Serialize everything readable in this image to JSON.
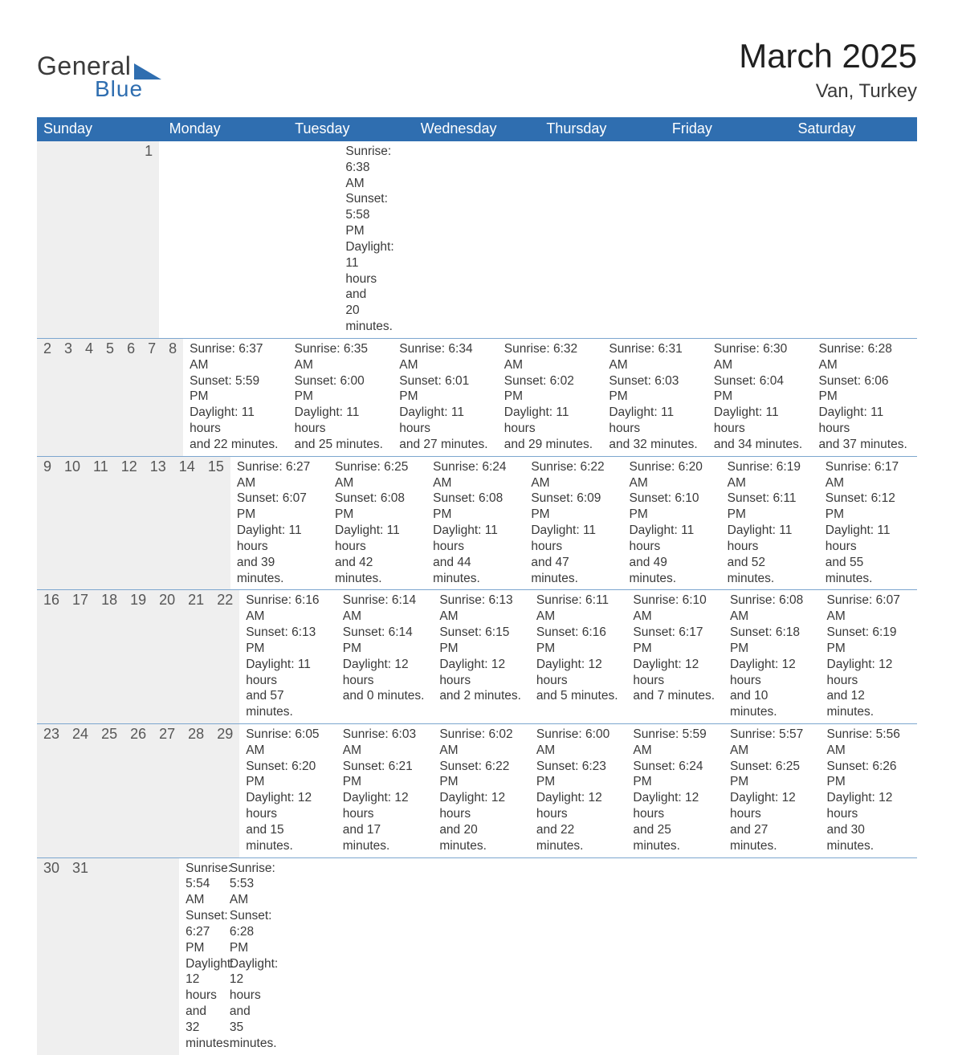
{
  "brand": {
    "name_part1": "General",
    "name_part2": "Blue",
    "text_color": "#3b3b3b",
    "accent_color": "#2f6eb0"
  },
  "title": "March 2025",
  "location": "Van, Turkey",
  "colors": {
    "header_bg": "#2f6eb0",
    "header_text": "#ffffff",
    "daynum_bg": "#efefef",
    "row_divider": "#7ca6cf",
    "body_text": "#3a3a3a",
    "page_bg": "#ffffff"
  },
  "typography": {
    "title_fontsize_pt": 32,
    "location_fontsize_pt": 18,
    "header_fontsize_pt": 14,
    "body_fontsize_pt": 12
  },
  "day_labels": [
    "Sunday",
    "Monday",
    "Tuesday",
    "Wednesday",
    "Thursday",
    "Friday",
    "Saturday"
  ],
  "weeks": [
    [
      null,
      null,
      null,
      null,
      null,
      null,
      {
        "n": "1",
        "sr": "Sunrise: 6:38 AM",
        "ss": "Sunset: 5:58 PM",
        "d1": "Daylight: 11 hours",
        "d2": "and 20 minutes."
      }
    ],
    [
      {
        "n": "2",
        "sr": "Sunrise: 6:37 AM",
        "ss": "Sunset: 5:59 PM",
        "d1": "Daylight: 11 hours",
        "d2": "and 22 minutes."
      },
      {
        "n": "3",
        "sr": "Sunrise: 6:35 AM",
        "ss": "Sunset: 6:00 PM",
        "d1": "Daylight: 11 hours",
        "d2": "and 25 minutes."
      },
      {
        "n": "4",
        "sr": "Sunrise: 6:34 AM",
        "ss": "Sunset: 6:01 PM",
        "d1": "Daylight: 11 hours",
        "d2": "and 27 minutes."
      },
      {
        "n": "5",
        "sr": "Sunrise: 6:32 AM",
        "ss": "Sunset: 6:02 PM",
        "d1": "Daylight: 11 hours",
        "d2": "and 29 minutes."
      },
      {
        "n": "6",
        "sr": "Sunrise: 6:31 AM",
        "ss": "Sunset: 6:03 PM",
        "d1": "Daylight: 11 hours",
        "d2": "and 32 minutes."
      },
      {
        "n": "7",
        "sr": "Sunrise: 6:30 AM",
        "ss": "Sunset: 6:04 PM",
        "d1": "Daylight: 11 hours",
        "d2": "and 34 minutes."
      },
      {
        "n": "8",
        "sr": "Sunrise: 6:28 AM",
        "ss": "Sunset: 6:06 PM",
        "d1": "Daylight: 11 hours",
        "d2": "and 37 minutes."
      }
    ],
    [
      {
        "n": "9",
        "sr": "Sunrise: 6:27 AM",
        "ss": "Sunset: 6:07 PM",
        "d1": "Daylight: 11 hours",
        "d2": "and 39 minutes."
      },
      {
        "n": "10",
        "sr": "Sunrise: 6:25 AM",
        "ss": "Sunset: 6:08 PM",
        "d1": "Daylight: 11 hours",
        "d2": "and 42 minutes."
      },
      {
        "n": "11",
        "sr": "Sunrise: 6:24 AM",
        "ss": "Sunset: 6:08 PM",
        "d1": "Daylight: 11 hours",
        "d2": "and 44 minutes."
      },
      {
        "n": "12",
        "sr": "Sunrise: 6:22 AM",
        "ss": "Sunset: 6:09 PM",
        "d1": "Daylight: 11 hours",
        "d2": "and 47 minutes."
      },
      {
        "n": "13",
        "sr": "Sunrise: 6:20 AM",
        "ss": "Sunset: 6:10 PM",
        "d1": "Daylight: 11 hours",
        "d2": "and 49 minutes."
      },
      {
        "n": "14",
        "sr": "Sunrise: 6:19 AM",
        "ss": "Sunset: 6:11 PM",
        "d1": "Daylight: 11 hours",
        "d2": "and 52 minutes."
      },
      {
        "n": "15",
        "sr": "Sunrise: 6:17 AM",
        "ss": "Sunset: 6:12 PM",
        "d1": "Daylight: 11 hours",
        "d2": "and 55 minutes."
      }
    ],
    [
      {
        "n": "16",
        "sr": "Sunrise: 6:16 AM",
        "ss": "Sunset: 6:13 PM",
        "d1": "Daylight: 11 hours",
        "d2": "and 57 minutes."
      },
      {
        "n": "17",
        "sr": "Sunrise: 6:14 AM",
        "ss": "Sunset: 6:14 PM",
        "d1": "Daylight: 12 hours",
        "d2": "and 0 minutes."
      },
      {
        "n": "18",
        "sr": "Sunrise: 6:13 AM",
        "ss": "Sunset: 6:15 PM",
        "d1": "Daylight: 12 hours",
        "d2": "and 2 minutes."
      },
      {
        "n": "19",
        "sr": "Sunrise: 6:11 AM",
        "ss": "Sunset: 6:16 PM",
        "d1": "Daylight: 12 hours",
        "d2": "and 5 minutes."
      },
      {
        "n": "20",
        "sr": "Sunrise: 6:10 AM",
        "ss": "Sunset: 6:17 PM",
        "d1": "Daylight: 12 hours",
        "d2": "and 7 minutes."
      },
      {
        "n": "21",
        "sr": "Sunrise: 6:08 AM",
        "ss": "Sunset: 6:18 PM",
        "d1": "Daylight: 12 hours",
        "d2": "and 10 minutes."
      },
      {
        "n": "22",
        "sr": "Sunrise: 6:07 AM",
        "ss": "Sunset: 6:19 PM",
        "d1": "Daylight: 12 hours",
        "d2": "and 12 minutes."
      }
    ],
    [
      {
        "n": "23",
        "sr": "Sunrise: 6:05 AM",
        "ss": "Sunset: 6:20 PM",
        "d1": "Daylight: 12 hours",
        "d2": "and 15 minutes."
      },
      {
        "n": "24",
        "sr": "Sunrise: 6:03 AM",
        "ss": "Sunset: 6:21 PM",
        "d1": "Daylight: 12 hours",
        "d2": "and 17 minutes."
      },
      {
        "n": "25",
        "sr": "Sunrise: 6:02 AM",
        "ss": "Sunset: 6:22 PM",
        "d1": "Daylight: 12 hours",
        "d2": "and 20 minutes."
      },
      {
        "n": "26",
        "sr": "Sunrise: 6:00 AM",
        "ss": "Sunset: 6:23 PM",
        "d1": "Daylight: 12 hours",
        "d2": "and 22 minutes."
      },
      {
        "n": "27",
        "sr": "Sunrise: 5:59 AM",
        "ss": "Sunset: 6:24 PM",
        "d1": "Daylight: 12 hours",
        "d2": "and 25 minutes."
      },
      {
        "n": "28",
        "sr": "Sunrise: 5:57 AM",
        "ss": "Sunset: 6:25 PM",
        "d1": "Daylight: 12 hours",
        "d2": "and 27 minutes."
      },
      {
        "n": "29",
        "sr": "Sunrise: 5:56 AM",
        "ss": "Sunset: 6:26 PM",
        "d1": "Daylight: 12 hours",
        "d2": "and 30 minutes."
      }
    ],
    [
      {
        "n": "30",
        "sr": "Sunrise: 5:54 AM",
        "ss": "Sunset: 6:27 PM",
        "d1": "Daylight: 12 hours",
        "d2": "and 32 minutes."
      },
      {
        "n": "31",
        "sr": "Sunrise: 5:53 AM",
        "ss": "Sunset: 6:28 PM",
        "d1": "Daylight: 12 hours",
        "d2": "and 35 minutes."
      },
      null,
      null,
      null,
      null,
      null
    ]
  ]
}
